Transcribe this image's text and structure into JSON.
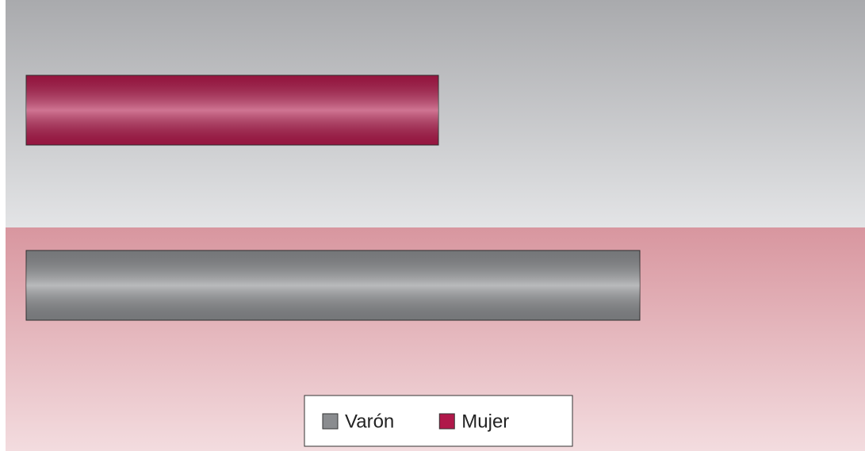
{
  "chart_data": {
    "type": "hbar",
    "categories": [
      null
    ],
    "series": [
      {
        "name": "Varón",
        "color": "#8a8c8f",
        "values": [
          77.4
        ]
      },
      {
        "name": "Mujer",
        "color": "#b0184a",
        "values": [
          52
        ]
      }
    ],
    "xlim": [
      0,
      100
    ],
    "legend": "bottom"
  }
}
